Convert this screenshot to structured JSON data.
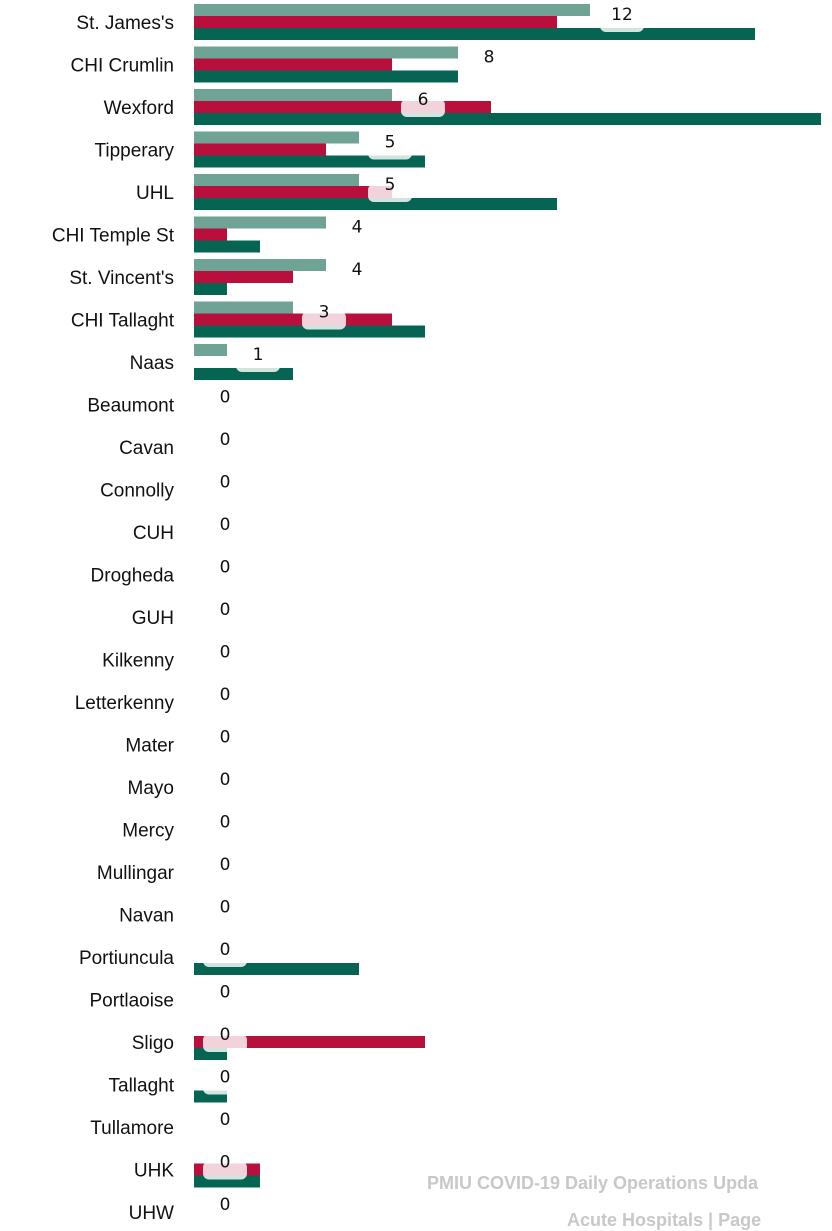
{
  "chart_data": {
    "type": "bar",
    "orientation": "horizontal",
    "categories": [
      "St. James's",
      "CHI Crumlin",
      "Wexford",
      "Tipperary",
      "UHL",
      "CHI Temple St",
      "St. Vincent's",
      "CHI Tallaght",
      "Naas",
      "Beaumont",
      "Cavan",
      "Connolly",
      "CUH",
      "Drogheda",
      "GUH",
      "Kilkenny",
      "Letterkenny",
      "Mater",
      "Mayo",
      "Mercy",
      "Mullingar",
      "Navan",
      "Portiuncula",
      "Portlaoise",
      "Sligo",
      "Tallaght",
      "Tullamore",
      "UHK",
      "UHW"
    ],
    "series": [
      {
        "color": "#6fa396",
        "values": [
          12,
          8,
          6,
          5,
          5,
          4,
          4,
          3,
          1,
          0,
          0,
          0,
          0,
          0,
          0,
          0,
          0,
          0,
          0,
          0,
          0,
          0,
          0,
          0,
          0,
          0,
          0,
          0,
          0
        ]
      },
      {
        "color": "#b90f3d",
        "values": [
          11,
          6,
          9,
          4,
          6,
          1,
          3,
          6,
          0,
          0,
          0,
          0,
          0,
          0,
          0,
          0,
          0,
          0,
          0,
          0,
          0,
          0,
          0,
          0,
          7,
          0,
          0,
          2,
          0
        ]
      },
      {
        "color": "#066453",
        "values": [
          17,
          8,
          19,
          7,
          11,
          2,
          1,
          7,
          3,
          0,
          0,
          0,
          0,
          0,
          0,
          0,
          0,
          0,
          0,
          0,
          0,
          0,
          5,
          0,
          1,
          1,
          0,
          2,
          0
        ]
      }
    ],
    "data_labels": [
      "12",
      "8",
      "6",
      "5",
      "5",
      "4",
      "4",
      "3",
      "1",
      "0",
      "0",
      "0",
      "0",
      "0",
      "0",
      "0",
      "0",
      "0",
      "0",
      "0",
      "0",
      "0",
      "0",
      "0",
      "0",
      "0",
      "0",
      "0",
      "0"
    ],
    "legend": "none",
    "grid": false
  },
  "footer": {
    "line1": "PMIU COVID-19 Daily Operations Upda",
    "line2": "Acute Hospitals |  Page"
  }
}
